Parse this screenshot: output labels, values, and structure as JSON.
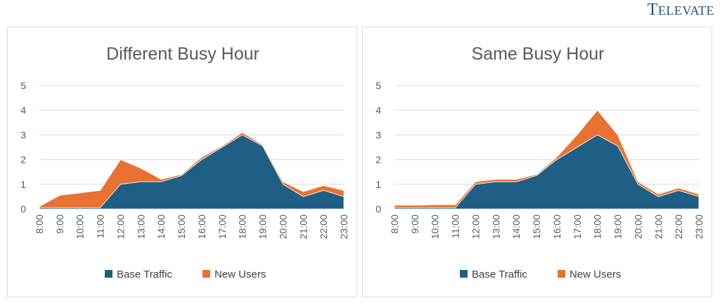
{
  "logo": {
    "text": "Televate"
  },
  "colors": {
    "base": "#1f5f85",
    "new": "#e97132",
    "grid": "#d9d9d9"
  },
  "chart_data": [
    {
      "type": "area",
      "stacked": true,
      "title": "Different Busy Hour",
      "x": [
        "8:00",
        "9:00",
        "10:00",
        "11:00",
        "12:00",
        "13:00",
        "14:00",
        "15:00",
        "16:00",
        "17:00",
        "18:00",
        "19:00",
        "20:00",
        "21:00",
        "22:00",
        "23:00"
      ],
      "ylim": [
        0,
        5
      ],
      "yticks": [
        "0",
        "1",
        "2",
        "3",
        "4",
        "5"
      ],
      "grid": true,
      "legend_position": "bottom",
      "series": [
        {
          "name": "Base Traffic",
          "values": [
            0.05,
            0.05,
            0.05,
            0.05,
            1.0,
            1.1,
            1.1,
            1.35,
            2.0,
            2.5,
            3.0,
            2.55,
            1.0,
            0.5,
            0.75,
            0.5
          ]
        },
        {
          "name": "New Users",
          "values": [
            0.05,
            0.5,
            0.6,
            0.7,
            1.0,
            0.55,
            0.1,
            0.05,
            0.1,
            0.05,
            0.1,
            0.05,
            0.1,
            0.2,
            0.2,
            0.25
          ]
        }
      ]
    },
    {
      "type": "area",
      "stacked": true,
      "title": "Same Busy Hour",
      "x": [
        "8:00",
        "9:00",
        "10:00",
        "11:00",
        "12:00",
        "13:00",
        "14:00",
        "15:00",
        "16:00",
        "17:00",
        "18:00",
        "19:00",
        "20:00",
        "21:00",
        "22:00",
        "23:00"
      ],
      "ylim": [
        0,
        5
      ],
      "yticks": [
        "0",
        "1",
        "2",
        "3",
        "4",
        "5"
      ],
      "grid": true,
      "legend_position": "bottom",
      "series": [
        {
          "name": "Base Traffic",
          "values": [
            0.05,
            0.05,
            0.05,
            0.05,
            1.0,
            1.1,
            1.1,
            1.35,
            2.0,
            2.5,
            3.0,
            2.55,
            1.0,
            0.5,
            0.75,
            0.5
          ]
        },
        {
          "name": "New Users",
          "values": [
            0.1,
            0.1,
            0.12,
            0.12,
            0.1,
            0.1,
            0.1,
            0.05,
            0.1,
            0.5,
            1.0,
            0.45,
            0.1,
            0.1,
            0.1,
            0.1
          ]
        }
      ]
    }
  ]
}
